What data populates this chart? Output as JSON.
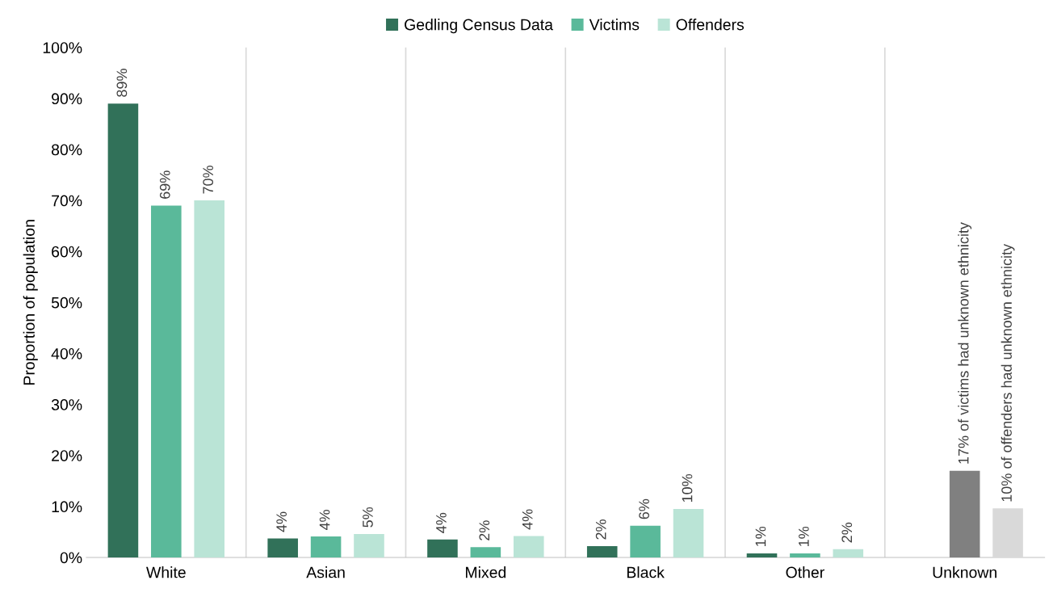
{
  "chart_data": {
    "type": "bar",
    "ylabel": "Proportion of population",
    "categories": [
      "White",
      "Asian",
      "Mixed",
      "Black",
      "Other",
      "Unknown"
    ],
    "series": [
      {
        "name": "Gedling Census Data",
        "color": "#317159",
        "values": [
          89,
          3.7,
          3.5,
          2.2,
          0.8,
          null
        ],
        "value_labels": [
          "89%",
          "4%",
          "4%",
          "2%",
          "1%",
          null
        ]
      },
      {
        "name": "Victims",
        "color": "#5ab99a",
        "colors": [
          "#5ab99a",
          "#5ab99a",
          "#5ab99a",
          "#5ab99a",
          "#5ab99a",
          "#808080"
        ],
        "values": [
          69,
          4.1,
          2.0,
          6.2,
          0.8,
          17
        ],
        "value_labels": [
          "69%",
          "4%",
          "2%",
          "6%",
          "1%",
          "17% of victims had unknown ethnicity"
        ]
      },
      {
        "name": "Offenders",
        "color": "#bae4d6",
        "colors": [
          "#bae4d6",
          "#bae4d6",
          "#bae4d6",
          "#bae4d6",
          "#bae4d6",
          "#d9d9d9"
        ],
        "values": [
          70,
          4.6,
          4.2,
          9.5,
          1.6,
          9.6
        ],
        "value_labels": [
          "70%",
          "5%",
          "4%",
          "10%",
          "2%",
          "10% of offenders had unknown ethnicity"
        ]
      }
    ],
    "ylim": [
      0,
      100
    ],
    "yticks": [
      {
        "value": 0,
        "label": "0%"
      },
      {
        "value": 10,
        "label": "10%"
      },
      {
        "value": 20,
        "label": "20%"
      },
      {
        "value": 30,
        "label": "30%"
      },
      {
        "value": 40,
        "label": "40%"
      },
      {
        "value": 50,
        "label": "50%"
      },
      {
        "value": 60,
        "label": "60%"
      },
      {
        "value": 70,
        "label": "70%"
      },
      {
        "value": 80,
        "label": "80%"
      },
      {
        "value": 90,
        "label": "90%"
      },
      {
        "value": 100,
        "label": "100%"
      }
    ],
    "grid": "x",
    "legend": "top"
  }
}
